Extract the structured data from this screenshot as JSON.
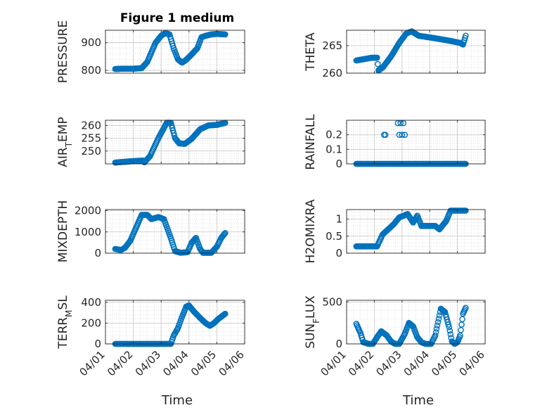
{
  "figure": {
    "title": "Figure 1 medium",
    "x_tick_labels": [
      "04/01",
      "04/02",
      "04/03",
      "04/04",
      "04/05",
      "04/06"
    ],
    "x_label": "Time"
  },
  "chart_data": [
    {
      "type": "scatter",
      "ylabel": "PRESSURE",
      "title": "Figure 1 medium",
      "xlim": [
        "04/01",
        "04/06"
      ],
      "ylim": [
        790,
        945
      ],
      "yticks": [
        800,
        900
      ],
      "grid": true,
      "color": "#0072BD",
      "marker": "open-circle",
      "knots": [
        [
          0.35,
          805
        ],
        [
          0.6,
          806
        ],
        [
          1.0,
          806
        ],
        [
          1.3,
          808
        ],
        [
          1.5,
          830
        ],
        [
          1.8,
          900
        ],
        [
          2.0,
          925
        ],
        [
          2.15,
          935
        ],
        [
          2.3,
          930
        ],
        [
          2.45,
          880
        ],
        [
          2.6,
          840
        ],
        [
          2.75,
          828
        ],
        [
          2.9,
          838
        ],
        [
          3.1,
          858
        ],
        [
          3.3,
          880
        ],
        [
          3.45,
          920
        ],
        [
          3.6,
          925
        ],
        [
          3.8,
          930
        ],
        [
          4.0,
          932
        ],
        [
          4.3,
          930
        ]
      ]
    },
    {
      "type": "scatter",
      "ylabel": "THETA",
      "xlim": [
        "04/01",
        "04/06"
      ],
      "ylim": [
        260,
        267.8
      ],
      "yticks": [
        260,
        265
      ],
      "grid": true,
      "color": "#0072BD",
      "marker": "open-circle",
      "knots": [
        [
          0.35,
          262.3
        ],
        [
          0.9,
          262.8
        ],
        [
          1.1,
          262.8
        ],
        [
          1.15,
          260.5
        ],
        [
          1.3,
          261.0
        ],
        [
          1.6,
          263.0
        ],
        [
          1.9,
          265.5
        ],
        [
          2.15,
          267.2
        ],
        [
          2.35,
          267.6
        ],
        [
          2.6,
          266.8
        ],
        [
          3.0,
          266.5
        ],
        [
          3.6,
          266.0
        ],
        [
          4.1,
          265.5
        ],
        [
          4.2,
          265.2
        ],
        [
          4.3,
          266.8
        ]
      ]
    },
    {
      "type": "scatter",
      "ylabel": "AIR_TEMP",
      "ylabel_main": "AIR",
      "ylabel_sub": "T",
      "ylabel_rest": "EMP",
      "xlim": [
        "04/01",
        "04/06"
      ],
      "ylim": [
        245,
        262
      ],
      "yticks": [
        250,
        255,
        260
      ],
      "grid": true,
      "color": "#0072BD",
      "marker": "open-circle",
      "knots": [
        [
          0.35,
          245.5
        ],
        [
          0.9,
          246.0
        ],
        [
          1.35,
          246.3
        ],
        [
          1.4,
          245.6
        ],
        [
          1.6,
          248
        ],
        [
          1.9,
          255
        ],
        [
          2.2,
          261.0
        ],
        [
          2.35,
          261.0
        ],
        [
          2.5,
          255
        ],
        [
          2.65,
          253.0
        ],
        [
          2.85,
          252.8
        ],
        [
          3.1,
          254.8
        ],
        [
          3.4,
          258.5
        ],
        [
          3.7,
          260.0
        ],
        [
          4.0,
          260.2
        ],
        [
          4.3,
          261.0
        ]
      ]
    },
    {
      "type": "scatter",
      "ylabel": "RAINFALL",
      "xlim": [
        "04/01",
        "04/06"
      ],
      "ylim": [
        0,
        0.3
      ],
      "yticks": [
        0,
        0.1,
        0.2
      ],
      "grid": true,
      "color": "#0072BD",
      "marker": "open-circle",
      "knots": [
        [
          0.35,
          0
        ],
        [
          4.3,
          0
        ]
      ],
      "spikes": [
        [
          1.35,
          0.2
        ],
        [
          1.4,
          0.2
        ],
        [
          1.85,
          0.28
        ],
        [
          1.9,
          0.2
        ],
        [
          1.95,
          0.28
        ],
        [
          2.0,
          0.2
        ],
        [
          2.05,
          0.28
        ],
        [
          2.1,
          0.2
        ]
      ]
    },
    {
      "type": "scatter",
      "ylabel": "MIXDEPTH",
      "xlim": [
        "04/01",
        "04/06"
      ],
      "ylim": [
        0,
        2050
      ],
      "yticks": [
        0,
        1000,
        2000
      ],
      "grid": true,
      "color": "#0072BD",
      "marker": "open-circle",
      "knots": [
        [
          0.35,
          200
        ],
        [
          0.55,
          150
        ],
        [
          0.7,
          250
        ],
        [
          0.9,
          600
        ],
        [
          1.1,
          1200
        ],
        [
          1.3,
          1800
        ],
        [
          1.5,
          1800
        ],
        [
          1.65,
          1600
        ],
        [
          1.9,
          1700
        ],
        [
          2.1,
          1600
        ],
        [
          2.35,
          700
        ],
        [
          2.5,
          100
        ],
        [
          2.7,
          20
        ],
        [
          2.95,
          50
        ],
        [
          3.1,
          500
        ],
        [
          3.25,
          720
        ],
        [
          3.4,
          200
        ],
        [
          3.5,
          20
        ],
        [
          3.8,
          20
        ],
        [
          4.0,
          300
        ],
        [
          4.15,
          700
        ],
        [
          4.3,
          950
        ]
      ]
    },
    {
      "type": "scatter",
      "ylabel": "H2OMIXRA",
      "xlim": [
        "04/01",
        "04/06"
      ],
      "ylim": [
        0,
        1.28
      ],
      "yticks": [
        0,
        0.5,
        1
      ],
      "grid": true,
      "color": "#0072BD",
      "marker": "open-circle",
      "knots": [
        [
          0.35,
          0.2
        ],
        [
          1.1,
          0.2
        ],
        [
          1.3,
          0.55
        ],
        [
          1.5,
          0.7
        ],
        [
          1.7,
          0.85
        ],
        [
          1.9,
          1.05
        ],
        [
          2.2,
          1.15
        ],
        [
          2.4,
          0.9
        ],
        [
          2.55,
          1.1
        ],
        [
          2.7,
          0.8
        ],
        [
          3.2,
          0.8
        ],
        [
          3.35,
          0.7
        ],
        [
          3.6,
          0.95
        ],
        [
          3.75,
          1.25
        ],
        [
          4.3,
          1.25
        ]
      ]
    },
    {
      "type": "scatter",
      "ylabel": "TERR_MSL",
      "ylabel_main": "TERR",
      "ylabel_sub": "M",
      "ylabel_rest": "SL",
      "xlim": [
        "04/01",
        "04/06"
      ],
      "ylim": [
        0,
        420
      ],
      "yticks": [
        0,
        200,
        400
      ],
      "grid": true,
      "color": "#0072BD",
      "marker": "open-circle",
      "knots": [
        [
          0.35,
          0
        ],
        [
          2.35,
          0
        ],
        [
          2.45,
          80
        ],
        [
          2.6,
          150
        ],
        [
          2.75,
          260
        ],
        [
          2.9,
          360
        ],
        [
          3.0,
          370
        ],
        [
          3.15,
          320
        ],
        [
          3.4,
          250
        ],
        [
          3.6,
          200
        ],
        [
          3.75,
          175
        ],
        [
          3.9,
          200
        ],
        [
          4.05,
          240
        ],
        [
          4.2,
          270
        ],
        [
          4.3,
          290
        ]
      ]
    },
    {
      "type": "scatter",
      "ylabel": "SUN_FLUX",
      "ylabel_main": "SUN",
      "ylabel_sub": "F",
      "ylabel_rest": "LUX",
      "xlim": [
        "04/01",
        "04/06"
      ],
      "ylim": [
        0,
        520
      ],
      "yticks": [
        0,
        500
      ],
      "grid": true,
      "color": "#0072BD",
      "marker": "open-circle",
      "knots": [
        [
          0.35,
          240
        ],
        [
          0.5,
          130
        ],
        [
          0.6,
          20
        ],
        [
          0.8,
          0
        ],
        [
          0.95,
          0
        ],
        [
          1.1,
          80
        ],
        [
          1.25,
          150
        ],
        [
          1.45,
          100
        ],
        [
          1.6,
          30
        ],
        [
          1.75,
          0
        ],
        [
          1.9,
          0
        ],
        [
          2.1,
          120
        ],
        [
          2.25,
          250
        ],
        [
          2.4,
          210
        ],
        [
          2.55,
          80
        ],
        [
          2.7,
          20
        ],
        [
          2.85,
          0
        ],
        [
          3.05,
          0
        ],
        [
          3.2,
          100
        ],
        [
          3.4,
          420
        ],
        [
          3.55,
          380
        ],
        [
          3.7,
          200
        ],
        [
          3.8,
          30
        ],
        [
          3.9,
          0
        ],
        [
          4.0,
          20
        ],
        [
          4.1,
          100
        ],
        [
          4.2,
          360
        ],
        [
          4.3,
          430
        ]
      ]
    }
  ]
}
